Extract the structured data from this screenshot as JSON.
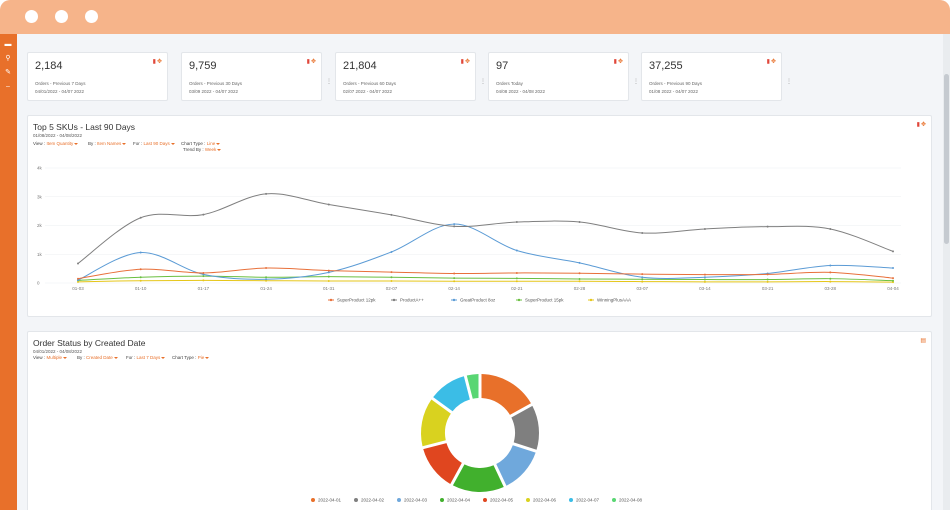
{
  "stats": [
    {
      "value": "2,184",
      "label": "Orders - Previous 7 Days",
      "range": "04/01/2022 - 04/07 2022"
    },
    {
      "value": "9,759",
      "label": "Orders - Previous 30 Days",
      "range": "03/09 2022 - 04/07 2022"
    },
    {
      "value": "21,804",
      "label": "Orders - Previous 60 Days",
      "range": "02/07 2022 - 04/07 2022"
    },
    {
      "value": "97",
      "label": "Orders Today",
      "range": "04/08 2022 - 04/08 2022"
    },
    {
      "value": "37,255",
      "label": "Orders - Previous 90 Days",
      "range": "01/08 2022 - 04/07 2022"
    }
  ],
  "top_skus": {
    "title": "Top 5 SKUs - Last 90 Days",
    "subtitle": "01/08/2022 - 04/08/2022",
    "filters": {
      "view_label": "View :",
      "view_value": "Item Quantity",
      "by_label": "By :",
      "by_value": "Item Names",
      "for_label": "For :",
      "for_value": "Last 90 Days",
      "chart_type_label": "Chart Type :",
      "chart_type_value": "Line",
      "trend_label": "Trend By :",
      "trend_value": "Week"
    }
  },
  "order_status": {
    "title": "Order Status by Created Date",
    "subtitle": "04/01/2022 - 04/08/2022",
    "filters": {
      "view_label": "View :",
      "view_value": "Multiple",
      "by_label": "By :",
      "by_value": "Created Date",
      "for_label": "For :",
      "for_value": "Last 7 Days",
      "chart_type_label": "Chart Type :",
      "chart_type_value": "Pie"
    }
  },
  "icons": {
    "delete": "trash-icon",
    "move": "move-icon",
    "menu": "kebab-menu-icon"
  },
  "colors": {
    "accent": "#e8702a",
    "titlebar": "#f6b48a"
  },
  "chart_data": [
    {
      "type": "line",
      "x": [
        "01-03",
        "01-10",
        "01-17",
        "01-24",
        "01-31",
        "02-07",
        "02-14",
        "02-21",
        "02-28",
        "03-07",
        "03-14",
        "03-21",
        "03-28",
        "04-04"
      ],
      "y_ticks": [
        "0",
        "1k",
        "2k",
        "3k",
        "4k"
      ],
      "ylim": [
        0,
        4000
      ],
      "series": [
        {
          "name": "SuperProduct 12pk",
          "color": "#e8703a",
          "values": [
            150,
            480,
            350,
            520,
            430,
            380,
            330,
            350,
            340,
            310,
            290,
            300,
            370,
            170
          ]
        },
        {
          "name": "ProductA++",
          "color": "#7f7f7f",
          "values": [
            680,
            2270,
            2380,
            3100,
            2730,
            2370,
            1970,
            2120,
            2120,
            1740,
            1880,
            1960,
            1880,
            1100
          ]
        },
        {
          "name": "GreatProduct 8oz",
          "color": "#5b9bd5",
          "values": [
            100,
            1060,
            300,
            130,
            370,
            1080,
            2050,
            1130,
            700,
            200,
            200,
            330,
            610,
            520
          ]
        },
        {
          "name": "SuperProduct 15pk",
          "color": "#6abf40",
          "values": [
            90,
            200,
            240,
            200,
            220,
            200,
            170,
            160,
            140,
            130,
            120,
            120,
            150,
            80
          ]
        },
        {
          "name": "WinningPlusAAA",
          "color": "#e6c619",
          "values": [
            40,
            80,
            90,
            80,
            70,
            70,
            60,
            60,
            60,
            50,
            40,
            40,
            50,
            30
          ]
        }
      ],
      "legend": "bottom"
    },
    {
      "type": "pie",
      "variant": "donut",
      "labels": [
        "2022-04-01",
        "2022-04-02",
        "2022-04-03",
        "2022-04-04",
        "2022-04-05",
        "2022-04-06",
        "2022-04-07",
        "2022-04-08"
      ],
      "values": [
        17,
        13,
        13,
        15,
        13,
        14,
        11,
        4
      ],
      "colors": [
        "#e8702a",
        "#7f7f7f",
        "#6fa8dc",
        "#41b02d",
        "#e0461f",
        "#d9d21f",
        "#3bbde6",
        "#59d673"
      ],
      "legend": "bottom"
    }
  ]
}
